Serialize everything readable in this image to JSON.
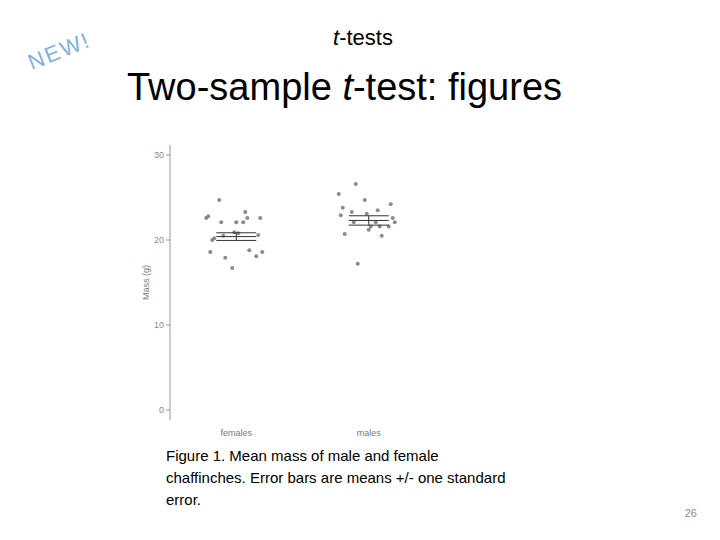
{
  "slide": {
    "badge": "NEW!",
    "topic": "t-tests",
    "title": "Two-sample t-test: figures",
    "caption": [
      "Figure 1. Mean mass of male and female",
      "chaffinches. Error bars are means +/- one standard",
      "error."
    ],
    "page_number": 26
  },
  "chart_data": {
    "type": "strip",
    "y_label": "Mass (g)",
    "categories": [
      "females",
      "males"
    ],
    "values": [
      20.4,
      22.3
    ],
    "errors": [
      0.45,
      0.55
    ],
    "points": [
      [
        22.6,
        22.1,
        24.7,
        18.1,
        16.7,
        22.8,
        23.3,
        22.1,
        20.6,
        20.9,
        18.6,
        22.6,
        20.5,
        22.6,
        22.1,
        20.0,
        18.8,
        17.9,
        18.6,
        20.8,
        20.2
      ],
      [
        25.4,
        22.1,
        23.3,
        21.6,
        24.7,
        22.9,
        23.5,
        22.1,
        24.2,
        23.1,
        23.8,
        21.6,
        26.6,
        22.6,
        21.2,
        20.7,
        20.5,
        17.2,
        22.1,
        21.6
      ]
    ],
    "color": "#7f7f7f",
    "ylim": [
      -1.2,
      31.2
    ],
    "yticks": [
      0,
      10,
      20,
      30
    ],
    "grid": false
  }
}
